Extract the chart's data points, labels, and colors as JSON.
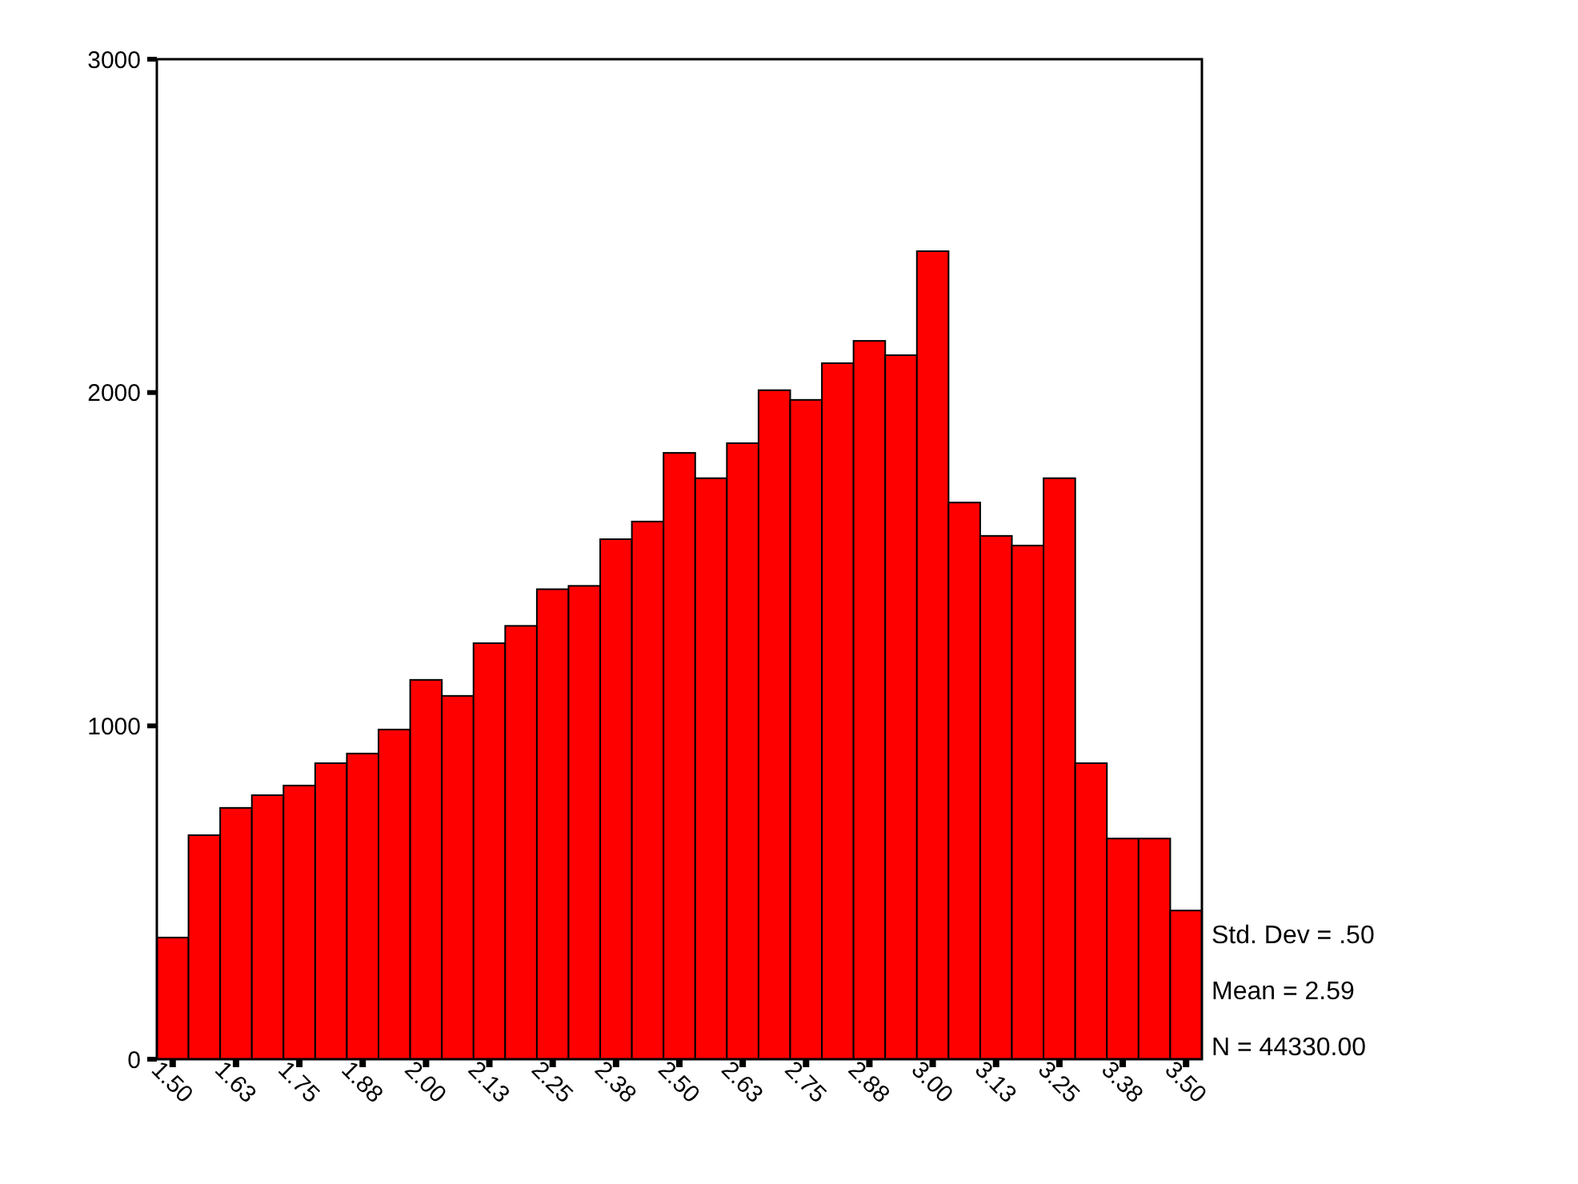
{
  "chart_data": {
    "type": "histogram",
    "bins": [
      1.46875,
      1.53125,
      1.59375,
      1.65625,
      1.71875,
      1.78125,
      1.84375,
      1.90625,
      1.96875,
      2.03125,
      2.09375,
      2.15625,
      2.21875,
      2.28125,
      2.34375,
      2.40625,
      2.46875,
      2.53125,
      2.59375,
      2.65625,
      2.71875,
      2.78125,
      2.84375,
      2.90625,
      2.96875,
      3.03125,
      3.09375,
      3.15625,
      3.21875,
      3.28125,
      3.34375,
      3.40625,
      3.46875,
      3.53125
    ],
    "values": [
      365,
      672,
      754,
      792,
      821,
      888,
      917,
      989,
      1138,
      1090,
      1248,
      1300,
      1410,
      1420,
      1560,
      1613,
      1819,
      1743,
      1848,
      2007,
      1978,
      2088,
      2155,
      2112,
      2424,
      1670,
      1570,
      1541,
      1743,
      888,
      662,
      662,
      446
    ],
    "color": "#ff0000",
    "xlim": [
      1.46875,
      3.53125
    ],
    "xticks": [
      {
        "value": 1.5,
        "label": "1.50"
      },
      {
        "value": 1.625,
        "label": "1.63"
      },
      {
        "value": 1.75,
        "label": "1.75"
      },
      {
        "value": 1.875,
        "label": "1.88"
      },
      {
        "value": 2.0,
        "label": "2.00"
      },
      {
        "value": 2.125,
        "label": "2.13"
      },
      {
        "value": 2.25,
        "label": "2.25"
      },
      {
        "value": 2.375,
        "label": "2.38"
      },
      {
        "value": 2.5,
        "label": "2.50"
      },
      {
        "value": 2.625,
        "label": "2.63"
      },
      {
        "value": 2.75,
        "label": "2.75"
      },
      {
        "value": 2.875,
        "label": "2.88"
      },
      {
        "value": 3.0,
        "label": "3.00"
      },
      {
        "value": 3.125,
        "label": "3.13"
      },
      {
        "value": 3.25,
        "label": "3.25"
      },
      {
        "value": 3.375,
        "label": "3.38"
      },
      {
        "value": 3.5,
        "label": "3.50"
      }
    ],
    "ylim": [
      0,
      3000
    ],
    "yticks": [
      0,
      1000,
      2000,
      3000
    ],
    "annotations": [
      "Std. Dev = .50",
      "Mean = 2.59",
      "N = 44330.00"
    ]
  }
}
